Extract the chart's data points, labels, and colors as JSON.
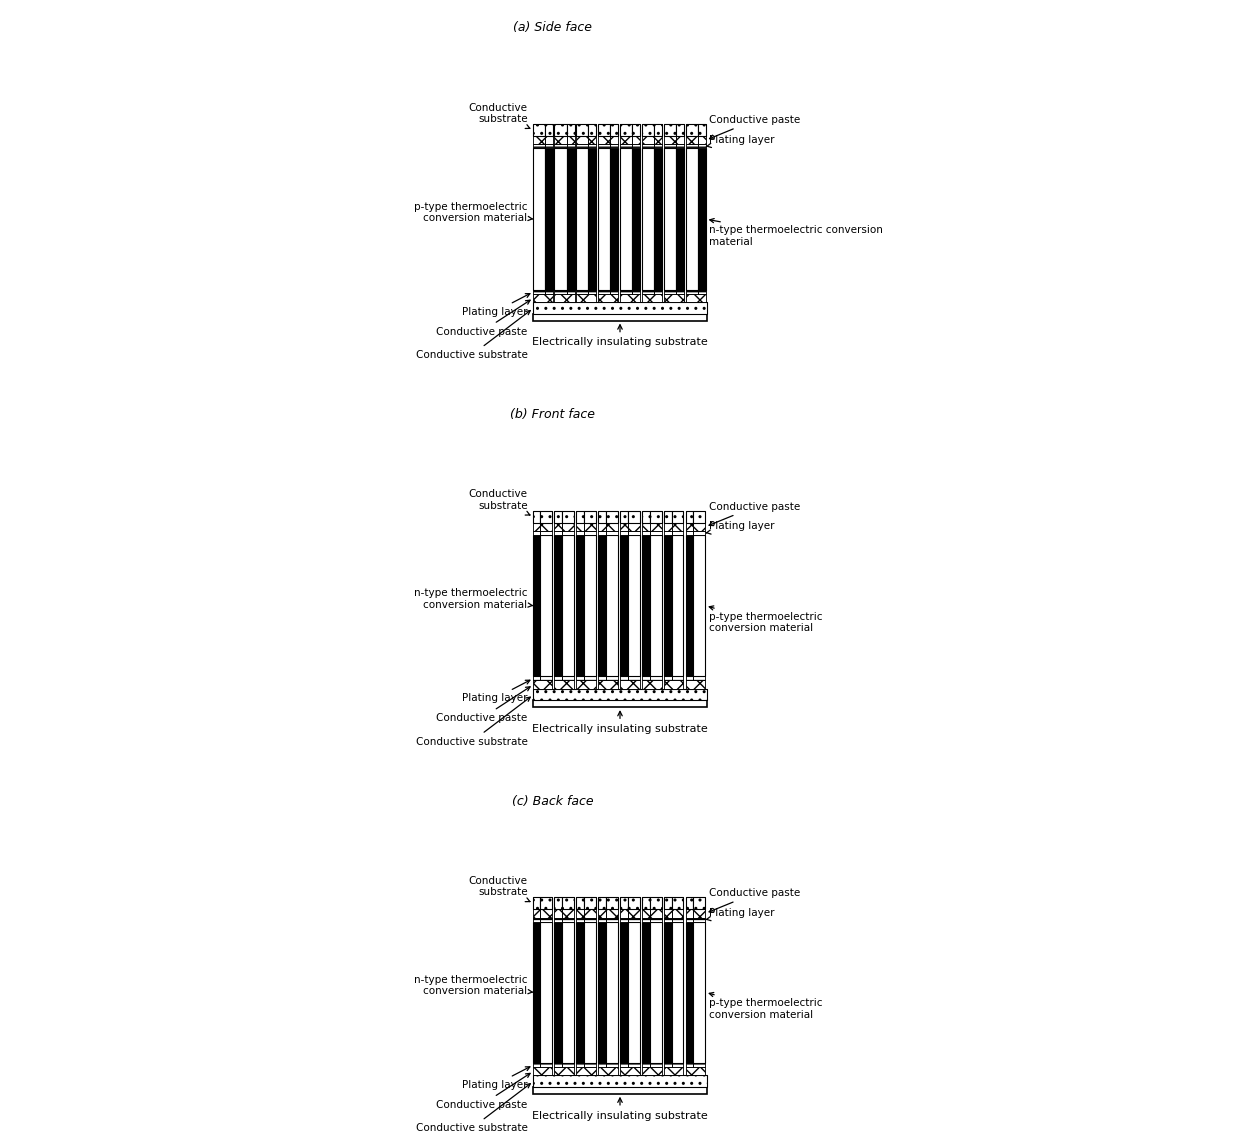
{
  "panels": [
    "(a) Side face",
    "(b) Front face",
    "(c) Back face"
  ],
  "n_pairs": 8,
  "bottom_label": "Electrically insulating substrate",
  "left_labels_a": [
    "Conductive\nsubstrate",
    "p-type thermoelectric\nconversion material",
    "Plating layer",
    "Conductive paste",
    "Conductive substrate"
  ],
  "right_labels_a": [
    "Conductive paste",
    "Plating layer",
    "n-type thermoelectric conversion\nmaterial"
  ],
  "left_labels_b": [
    "Conductive\nsubstrate",
    "n-type thermoelectric\nconversion material",
    "Plating layer",
    "Conductive paste",
    "Conductive substrate"
  ],
  "right_labels_b": [
    "Conductive paste",
    "Plating layer",
    "p-type thermoelectric\nconversion material"
  ],
  "left_labels_c": [
    "Conductive\nsubstrate",
    "n-type thermoelectric\nconversion material",
    "Plating layer",
    "Conductive paste",
    "Conductive substrate"
  ],
  "right_labels_c": [
    "Conductive paste",
    "Plating layer",
    "p-type thermoelectric\nconversion material"
  ]
}
